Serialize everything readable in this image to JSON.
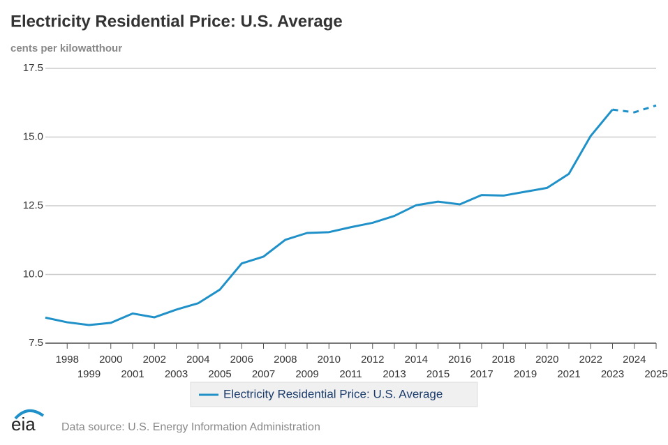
{
  "chart_data": {
    "type": "line",
    "title": "Electricity Residential Price: U.S. Average",
    "subtitle": "cents per kilowatthour",
    "x": [
      1997,
      1998,
      1999,
      2000,
      2001,
      2002,
      2003,
      2004,
      2005,
      2006,
      2007,
      2008,
      2009,
      2010,
      2011,
      2012,
      2013,
      2014,
      2015,
      2016,
      2017,
      2018,
      2019,
      2020,
      2021,
      2022,
      2023,
      2024,
      2025
    ],
    "series": [
      {
        "name": "Electricity Residential Price: U.S. Average",
        "color": "#1f91c8",
        "values": [
          8.43,
          8.26,
          8.16,
          8.24,
          8.58,
          8.44,
          8.72,
          8.95,
          9.45,
          10.4,
          10.65,
          11.26,
          11.51,
          11.54,
          11.72,
          11.88,
          12.13,
          12.52,
          12.65,
          12.55,
          12.89,
          12.87,
          13.01,
          13.15,
          13.66,
          15.04,
          16.0,
          15.9,
          16.15
        ]
      }
    ],
    "dashed_from": 2023,
    "xlim": [
      1997,
      2025
    ],
    "xticks": [
      1998,
      1999,
      2000,
      2001,
      2002,
      2003,
      2004,
      2005,
      2006,
      2007,
      2008,
      2009,
      2010,
      2011,
      2012,
      2013,
      2014,
      2015,
      2016,
      2017,
      2018,
      2019,
      2020,
      2021,
      2022,
      2023,
      2024,
      2025
    ],
    "ylim": [
      7.5,
      17.5
    ],
    "yticks": [
      7.5,
      {
        "value": 10,
        "label": "10.0"
      },
      12.5,
      {
        "value": 15,
        "label": "15.0"
      },
      17.5
    ],
    "grid": true,
    "legend": "bottom",
    "logo": "eia",
    "source": "Data source: U.S. Energy Information Administration"
  }
}
